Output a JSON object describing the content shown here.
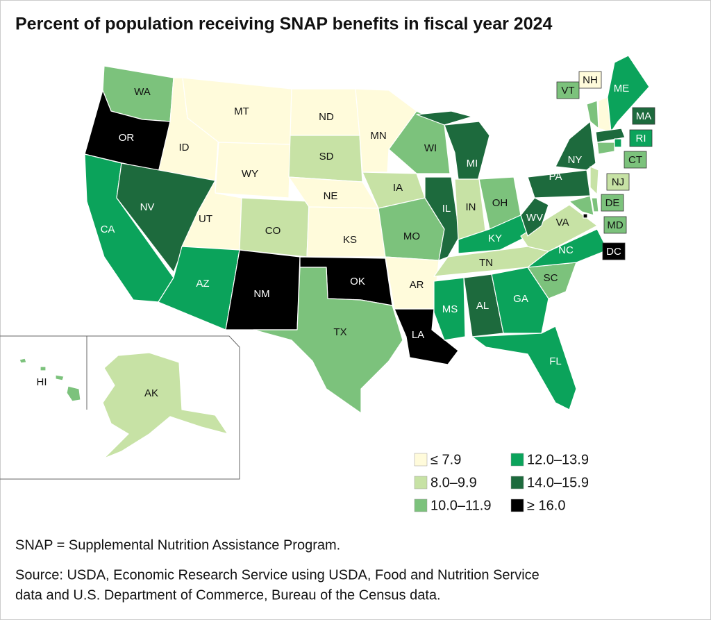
{
  "title": "Percent of population receiving SNAP benefits in fiscal year 2024",
  "legend": [
    {
      "label": "≤ 7.9",
      "color": "#fffbdb"
    },
    {
      "label": "8.0–9.9",
      "color": "#c7e2a5"
    },
    {
      "label": "10.0–11.9",
      "color": "#7cc27c"
    },
    {
      "label": "12.0–13.9",
      "color": "#0ba35b"
    },
    {
      "label": "14.0–15.9",
      "color": "#1d6a3d"
    },
    {
      "label": "≥ 16.0",
      "color": "#000000"
    }
  ],
  "states": [
    {
      "label": "WA",
      "color": "#7cc27c"
    },
    {
      "label": "OR",
      "color": "#000000"
    },
    {
      "label": "CA",
      "color": "#0ba35b"
    },
    {
      "label": "ID",
      "color": "#fffbdb"
    },
    {
      "label": "NV",
      "color": "#1d6a3d"
    },
    {
      "label": "MT",
      "color": "#fffbdb"
    },
    {
      "label": "WY",
      "color": "#fffbdb"
    },
    {
      "label": "UT",
      "color": "#fffbdb"
    },
    {
      "label": "AZ",
      "color": "#0ba35b"
    },
    {
      "label": "CO",
      "color": "#c7e2a5"
    },
    {
      "label": "NM",
      "color": "#000000"
    },
    {
      "label": "ND",
      "color": "#fffbdb"
    },
    {
      "label": "SD",
      "color": "#c7e2a5"
    },
    {
      "label": "NE",
      "color": "#fffbdb"
    },
    {
      "label": "KS",
      "color": "#fffbdb"
    },
    {
      "label": "OK",
      "color": "#000000"
    },
    {
      "label": "TX",
      "color": "#7cc27c"
    },
    {
      "label": "MN",
      "color": "#fffbdb"
    },
    {
      "label": "IA",
      "color": "#c7e2a5"
    },
    {
      "label": "MO",
      "color": "#7cc27c"
    },
    {
      "label": "AR",
      "color": "#fffbdb"
    },
    {
      "label": "LA",
      "color": "#000000"
    },
    {
      "label": "WI",
      "color": "#7cc27c"
    },
    {
      "label": "IL",
      "color": "#1d6a3d"
    },
    {
      "label": "MI",
      "color": "#1d6a3d"
    },
    {
      "label": "IN",
      "color": "#c7e2a5"
    },
    {
      "label": "OH",
      "color": "#7cc27c"
    },
    {
      "label": "KY",
      "color": "#0ba35b"
    },
    {
      "label": "TN",
      "color": "#c7e2a5"
    },
    {
      "label": "MS",
      "color": "#0ba35b"
    },
    {
      "label": "AL",
      "color": "#1d6a3d"
    },
    {
      "label": "GA",
      "color": "#0ba35b"
    },
    {
      "label": "FL",
      "color": "#0ba35b"
    },
    {
      "label": "SC",
      "color": "#7cc27c"
    },
    {
      "label": "NC",
      "color": "#0ba35b"
    },
    {
      "label": "VA",
      "color": "#c7e2a5"
    },
    {
      "label": "WV",
      "color": "#1d6a3d"
    },
    {
      "label": "PA",
      "color": "#1d6a3d"
    },
    {
      "label": "NY",
      "color": "#1d6a3d"
    },
    {
      "label": "VT",
      "color": "#7cc27c"
    },
    {
      "label": "NH",
      "color": "#fffbdb"
    },
    {
      "label": "ME",
      "color": "#0ba35b"
    },
    {
      "label": "MA",
      "color": "#1d6a3d"
    },
    {
      "label": "RI",
      "color": "#0ba35b"
    },
    {
      "label": "CT",
      "color": "#7cc27c"
    },
    {
      "label": "NJ",
      "color": "#c7e2a5"
    },
    {
      "label": "DE",
      "color": "#7cc27c"
    },
    {
      "label": "MD",
      "color": "#7cc27c"
    },
    {
      "label": "DC",
      "color": "#000000"
    },
    {
      "label": "AK",
      "color": "#c7e2a5"
    },
    {
      "label": "HI",
      "color": "#7cc27c"
    }
  ],
  "notes": [
    "SNAP = Supplemental Nutrition Assistance Program.",
    "Source: USDA, Economic Research Service using USDA, Food and Nutrition Service",
    "data and U.S. Department of Commerce, Bureau of the Census data."
  ]
}
